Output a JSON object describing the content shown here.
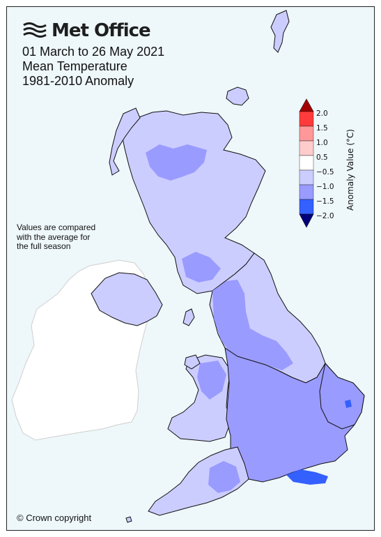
{
  "logo": {
    "text": "Met Office",
    "icon": "met-office-waves-icon"
  },
  "title": {
    "line1": "01 March to 26 May 2021",
    "line2": "Mean Temperature",
    "line3": "1981-2010 Anomaly"
  },
  "note": {
    "line1": "Values are compared",
    "line2": "with the average for",
    "line3": "the full season"
  },
  "copyright": "© Crown copyright",
  "legend": {
    "title": "Anomaly Value (°C)",
    "ticks": [
      "2.0",
      "1.5",
      "1.0",
      "0.5",
      "−0.5",
      "−1.0",
      "−1.5",
      "−2.0"
    ],
    "colors": {
      "above_max": "#a50000",
      "b1": "#ff3b3b",
      "b2": "#ff9999",
      "b3": "#ffcccc",
      "b4": "#ffffff",
      "b5": "#cccdff",
      "b6": "#9a9bff",
      "b7": "#3360ff",
      "below_min": "#00007a"
    }
  },
  "map_colors": {
    "background": "#eef7fa",
    "ireland": "#ffffff",
    "band_light": "#cccdff",
    "band_mid": "#9a9bff",
    "band_dark": "#3360ff",
    "border": "#111111",
    "ireland_border": "#cfcfcf"
  }
}
